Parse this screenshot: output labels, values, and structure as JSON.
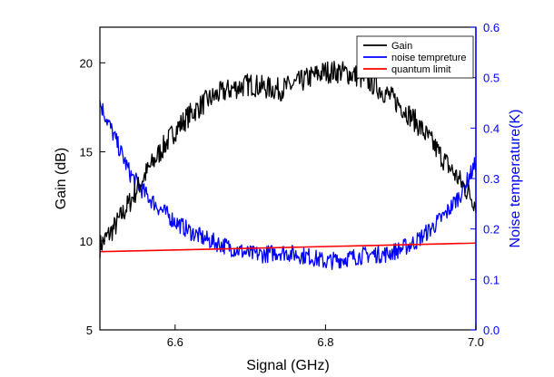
{
  "chart_data": {
    "type": "line",
    "title": "",
    "xlabel": "Signal (GHz)",
    "ylabel_left": "Gain (dB)",
    "ylabel_right": "Noise temperature(K)",
    "xlim": [
      6.5,
      7.0
    ],
    "ylim_left": [
      5,
      22
    ],
    "ylim_right": [
      0.0,
      0.6
    ],
    "x_ticks": [
      "6.6",
      "6.8",
      "7.0"
    ],
    "y_left_ticks": [
      "5",
      "10",
      "15",
      "20"
    ],
    "y_right_ticks": [
      "0.0",
      "0.1",
      "0.2",
      "0.3",
      "0.4",
      "0.5",
      "0.6"
    ],
    "grid": false,
    "legend_position": "top-right",
    "colors": {
      "gain": "#000000",
      "noise": "#0000ff",
      "limit": "#ff0000"
    },
    "series": [
      {
        "name": "Gain",
        "axis": "left",
        "x": [
          6.5,
          6.52,
          6.54,
          6.56,
          6.58,
          6.6,
          6.62,
          6.64,
          6.66,
          6.68,
          6.7,
          6.72,
          6.74,
          6.76,
          6.78,
          6.8,
          6.82,
          6.84,
          6.86,
          6.88,
          6.9,
          6.92,
          6.94,
          6.96,
          6.98,
          7.0
        ],
        "values": [
          9.7,
          10.8,
          12.2,
          13.7,
          15.0,
          16.2,
          17.1,
          17.8,
          18.3,
          18.6,
          18.8,
          18.6,
          18.5,
          18.8,
          19.2,
          19.5,
          19.5,
          19.3,
          18.9,
          18.3,
          17.6,
          16.7,
          15.6,
          14.4,
          13.3,
          12.1
        ]
      },
      {
        "name": "noise tempreture",
        "axis": "right",
        "x": [
          6.5,
          6.52,
          6.54,
          6.56,
          6.58,
          6.6,
          6.62,
          6.64,
          6.66,
          6.68,
          6.7,
          6.72,
          6.74,
          6.76,
          6.78,
          6.8,
          6.82,
          6.84,
          6.86,
          6.88,
          6.9,
          6.92,
          6.94,
          6.96,
          6.98,
          7.0
        ],
        "values": [
          0.45,
          0.38,
          0.31,
          0.27,
          0.24,
          0.215,
          0.195,
          0.18,
          0.17,
          0.16,
          0.15,
          0.15,
          0.155,
          0.15,
          0.145,
          0.135,
          0.14,
          0.145,
          0.15,
          0.15,
          0.16,
          0.175,
          0.2,
          0.23,
          0.27,
          0.33
        ]
      },
      {
        "name": "quantum limit",
        "axis": "right",
        "x": [
          6.5,
          7.0
        ],
        "values": [
          0.155,
          0.172
        ]
      }
    ]
  }
}
